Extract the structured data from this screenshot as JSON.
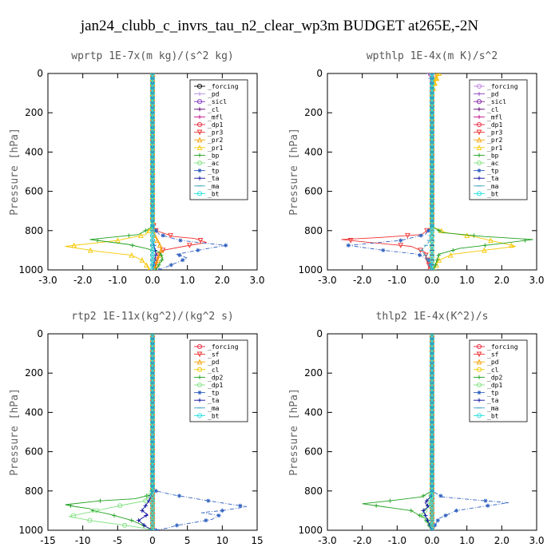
{
  "title": "jan24_clubb_c_invrs_tau_n2_clear_wp3m  BUDGET at265E,-2N",
  "chart_data": [
    {
      "type": "line",
      "title": "wprtp  1E-7x(m kg)/(s^2 kg)",
      "ylabel": "Pressure [hPa]",
      "xlim": [
        -3,
        3
      ],
      "ylim": [
        1000,
        0
      ],
      "xticks": [
        "-3.0",
        "-2.0",
        "-1.0",
        "0.0",
        "1.0",
        "2.0",
        "3.0"
      ],
      "yticks": [
        "0",
        "200",
        "400",
        "600",
        "800",
        "1000"
      ],
      "legend_position": "top-right",
      "series": [
        {
          "name": "_forcing",
          "color": "#000000",
          "marker": "o",
          "x": [
            0,
            0,
            0
          ],
          "y": [
            0,
            500,
            1000
          ]
        },
        {
          "name": "_pd",
          "color": "#b890e0",
          "marker": "+",
          "x": [
            0,
            0,
            0
          ],
          "y": [
            0,
            500,
            1000
          ]
        },
        {
          "name": "_sicl",
          "color": "#7a30c0",
          "marker": "o",
          "x": [
            0,
            0,
            0
          ],
          "y": [
            0,
            500,
            1000
          ]
        },
        {
          "name": "_cl",
          "color": "#5b0070",
          "marker": "+",
          "x": [
            0,
            0,
            0
          ],
          "y": [
            0,
            500,
            1000
          ]
        },
        {
          "name": "_mfl",
          "color": "#c0108a",
          "marker": "+",
          "x": [
            0,
            0,
            0
          ],
          "y": [
            0,
            500,
            1000
          ]
        },
        {
          "name": "_dp1",
          "color": "#e8213a",
          "marker": "o",
          "x": [
            0,
            0,
            0
          ],
          "y": [
            0,
            500,
            1000
          ]
        },
        {
          "name": "_pr3",
          "color": "#f03030",
          "marker": "v",
          "x": [
            0,
            0,
            0.1,
            0.6,
            1.2,
            1.55,
            0.9,
            0.3,
            0.15,
            0.1,
            0.05
          ],
          "y": [
            0,
            760,
            800,
            830,
            840,
            860,
            880,
            900,
            930,
            960,
            1000
          ]
        },
        {
          "name": "_pr2",
          "color": "#f5a000",
          "marker": "^",
          "x": [
            0,
            0,
            0,
            0.1,
            0.2,
            0.25,
            0.15,
            0.05
          ],
          "y": [
            0,
            760,
            800,
            840,
            870,
            900,
            950,
            1000
          ]
        },
        {
          "name": "_pr1",
          "color": "#f5c800",
          "marker": "^",
          "x": [
            0,
            0,
            -0.2,
            -1.0,
            -2.5,
            -1.6,
            -0.6,
            -0.3,
            -0.15,
            -0.1
          ],
          "y": [
            0,
            780,
            820,
            850,
            880,
            905,
            925,
            950,
            980,
            1000
          ]
        },
        {
          "name": "_bp",
          "color": "#20a020",
          "marker": "+",
          "x": [
            0,
            0,
            -0.4,
            -1.8,
            -0.7,
            -0.2,
            0.2,
            0.3,
            0.2,
            0.1
          ],
          "y": [
            0,
            780,
            820,
            845,
            870,
            890,
            910,
            940,
            970,
            1000
          ]
        },
        {
          "name": "_ac",
          "color": "#80e080",
          "marker": "o",
          "x": [
            0,
            0,
            0,
            0,
            0,
            0
          ],
          "y": [
            0,
            800,
            850,
            900,
            950,
            1000
          ]
        },
        {
          "name": "_tp",
          "color": "#3060c0",
          "marker": "*",
          "x": [
            0,
            0,
            0.2,
            0.8,
            2.1,
            1.3,
            0.7,
            1.0,
            0.6,
            0.2
          ],
          "y": [
            0,
            780,
            820,
            850,
            875,
            900,
            920,
            940,
            970,
            1000
          ]
        },
        {
          "name": "_ta",
          "color": "#1010a0",
          "marker": "+",
          "x": [
            0,
            0,
            0,
            0.05,
            0.1,
            0.05,
            0
          ],
          "y": [
            0,
            800,
            850,
            880,
            920,
            960,
            1000
          ]
        },
        {
          "name": "_ma",
          "color": "#40a0c0",
          "marker": "-",
          "x": [
            0,
            0,
            0
          ],
          "y": [
            0,
            500,
            1000
          ]
        },
        {
          "name": "_bt",
          "color": "#20e0e0",
          "marker": "o",
          "x": [
            0,
            0,
            0
          ],
          "y": [
            0,
            500,
            1000
          ]
        }
      ]
    },
    {
      "type": "line",
      "title": "wpthlp  1E-4x(m K)/s^2",
      "ylabel": "Pressure [hPa]",
      "xlim": [
        -3,
        3
      ],
      "ylim": [
        1000,
        0
      ],
      "xticks": [
        "-3.0",
        "-2.0",
        "-1.0",
        "0.0",
        "1.0",
        "2.0",
        "3.0"
      ],
      "yticks": [
        "0",
        "200",
        "400",
        "600",
        "800",
        "1000"
      ],
      "legend_position": "top-right",
      "series": [
        {
          "name": "_forcing",
          "color": "#c080e0",
          "marker": "o",
          "x": [
            0,
            0,
            0
          ],
          "y": [
            0,
            500,
            1000
          ]
        },
        {
          "name": "_pd",
          "color": "#9040c0",
          "marker": "+",
          "x": [
            -0.1,
            -0.05,
            0,
            0,
            0
          ],
          "y": [
            0,
            20,
            60,
            500,
            1000
          ]
        },
        {
          "name": "_sicl",
          "color": "#8020a0",
          "marker": "o",
          "x": [
            0,
            0,
            0
          ],
          "y": [
            0,
            500,
            1000
          ]
        },
        {
          "name": "_cl",
          "color": "#5b0070",
          "marker": "+",
          "x": [
            0,
            0,
            0
          ],
          "y": [
            0,
            500,
            1000
          ]
        },
        {
          "name": "_mfl",
          "color": "#c0108a",
          "marker": "+",
          "x": [
            0,
            0,
            0
          ],
          "y": [
            0,
            500,
            1000
          ]
        },
        {
          "name": "_dp1",
          "color": "#e8213a",
          "marker": "o",
          "x": [
            0,
            0,
            0
          ],
          "y": [
            0,
            500,
            1000
          ]
        },
        {
          "name": "_pr3",
          "color": "#f03030",
          "marker": "v",
          "x": [
            0,
            0,
            -0.3,
            -1.5,
            -2.6,
            -1.8,
            -0.6,
            -0.2,
            -0.05
          ],
          "y": [
            0,
            780,
            820,
            835,
            845,
            860,
            880,
            910,
            1000
          ]
        },
        {
          "name": "_pr2",
          "color": "#f5a000",
          "marker": "^",
          "x": [
            0.15,
            0.1,
            0,
            0,
            0
          ],
          "y": [
            0,
            30,
            80,
            500,
            1000
          ]
        },
        {
          "name": "_pr1",
          "color": "#f5c800",
          "marker": "^",
          "x": [
            0.2,
            0.1,
            0,
            0,
            0.4,
            1.2,
            2.4,
            1.5,
            0.6,
            0.2,
            0.05
          ],
          "y": [
            0,
            40,
            100,
            780,
            810,
            830,
            880,
            900,
            920,
            950,
            1000
          ]
        },
        {
          "name": "_bp",
          "color": "#20a020",
          "marker": "+",
          "x": [
            0,
            0,
            0.3,
            1.5,
            2.9,
            2.0,
            0.8,
            0.2,
            0.05
          ],
          "y": [
            0,
            780,
            810,
            830,
            845,
            865,
            890,
            920,
            1000
          ]
        },
        {
          "name": "_ac",
          "color": "#80e080",
          "marker": "o",
          "x": [
            0,
            0,
            0
          ],
          "y": [
            0,
            500,
            1000
          ]
        },
        {
          "name": "_tp",
          "color": "#3060c0",
          "marker": "*",
          "x": [
            0,
            0,
            -0.2,
            -0.9,
            -2.4,
            -1.4,
            -0.4,
            -0.1,
            0
          ],
          "y": [
            0,
            780,
            820,
            850,
            875,
            900,
            920,
            950,
            1000
          ]
        },
        {
          "name": "_ta",
          "color": "#1010a0",
          "marker": "+",
          "x": [
            0,
            0,
            0
          ],
          "y": [
            0,
            500,
            1000
          ]
        },
        {
          "name": "_ma",
          "color": "#40a0c0",
          "marker": "-",
          "x": [
            0,
            0,
            -0.1,
            -0.3,
            -0.1,
            0
          ],
          "y": [
            0,
            800,
            860,
            900,
            950,
            1000
          ]
        },
        {
          "name": "_bt",
          "color": "#20e0e0",
          "marker": "o",
          "x": [
            0,
            0,
            0
          ],
          "y": [
            0,
            500,
            1000
          ]
        }
      ]
    },
    {
      "type": "line",
      "title": "rtp2  1E-11x(kg^2)/(kg^2 s)",
      "ylabel": "Pressure [hPa]",
      "xlim": [
        -15,
        15
      ],
      "ylim": [
        1000,
        0
      ],
      "xticks": [
        "-15",
        "-10",
        "-5",
        "0",
        "5",
        "10",
        "15"
      ],
      "yticks": [
        "0",
        "200",
        "400",
        "600",
        "800",
        "1000"
      ],
      "legend_position": "top-right",
      "series": [
        {
          "name": "_forcing",
          "color": "#e8213a",
          "marker": "o",
          "x": [
            0,
            0,
            0
          ],
          "y": [
            0,
            500,
            1000
          ]
        },
        {
          "name": "_sf",
          "color": "#f03030",
          "marker": "v",
          "x": [
            0,
            0,
            0
          ],
          "y": [
            0,
            500,
            1000
          ]
        },
        {
          "name": "_pd",
          "color": "#f5a000",
          "marker": "^",
          "x": [
            0,
            0,
            0
          ],
          "y": [
            0,
            500,
            1000
          ]
        },
        {
          "name": "_cl",
          "color": "#f5c800",
          "marker": "o",
          "x": [
            0,
            0,
            0
          ],
          "y": [
            0,
            500,
            1000
          ]
        },
        {
          "name": "_dp2",
          "color": "#20a020",
          "marker": "+",
          "x": [
            0,
            0,
            -0.3,
            -2.5,
            -7.5,
            -12.5,
            -11.0,
            -9.0,
            -8.5,
            -6.0,
            -3.0,
            -1.0,
            0
          ],
          "y": [
            0,
            780,
            820,
            840,
            850,
            870,
            880,
            890,
            900,
            920,
            950,
            980,
            1000
          ]
        },
        {
          "name": "_dp1",
          "color": "#80e080",
          "marker": "o",
          "x": [
            0,
            0,
            -1.0,
            -4.0,
            -8.0,
            -12.0,
            -9.0,
            -5.0,
            -2.0,
            -0.5,
            0
          ],
          "y": [
            0,
            800,
            850,
            870,
            900,
            930,
            950,
            970,
            985,
            995,
            1000
          ]
        },
        {
          "name": "_tp",
          "color": "#3060c0",
          "marker": "*",
          "x": [
            0,
            0,
            0.5,
            3.0,
            8.0,
            13.5,
            10.0,
            7.0,
            9.5,
            8.5,
            6.0,
            3.5,
            2.0,
            0.5
          ],
          "y": [
            0,
            780,
            800,
            820,
            850,
            880,
            900,
            910,
            925,
            945,
            960,
            975,
            990,
            1000
          ]
        },
        {
          "name": "_ta",
          "color": "#1010a0",
          "marker": "+",
          "x": [
            0,
            0,
            -0.5,
            -1.5,
            -0.7,
            -2.0,
            -1.0,
            0
          ],
          "y": [
            0,
            800,
            850,
            900,
            920,
            950,
            980,
            1000
          ]
        },
        {
          "name": "_ma",
          "color": "#40a0c0",
          "marker": "-",
          "x": [
            0,
            0,
            0
          ],
          "y": [
            0,
            500,
            1000
          ]
        },
        {
          "name": "_bt",
          "color": "#20e0e0",
          "marker": "o",
          "x": [
            0,
            0,
            0
          ],
          "y": [
            0,
            500,
            1000
          ]
        }
      ]
    },
    {
      "type": "line",
      "title": "thlp2  1E-4x(K^2)/s",
      "ylabel": "Pressure [hPa]",
      "xlim": [
        -3,
        3
      ],
      "ylim": [
        1000,
        0
      ],
      "xticks": [
        "-3.0",
        "-2.0",
        "-1.0",
        "0.0",
        "1.0",
        "2.0",
        "3.0"
      ],
      "yticks": [
        "0",
        "200",
        "400",
        "600",
        "800",
        "1000"
      ],
      "legend_position": "top-right",
      "series": [
        {
          "name": "_forcing",
          "color": "#e8213a",
          "marker": "o",
          "x": [
            0,
            0,
            0
          ],
          "y": [
            0,
            500,
            1000
          ]
        },
        {
          "name": "_sf",
          "color": "#f03030",
          "marker": "v",
          "x": [
            0,
            0,
            0
          ],
          "y": [
            0,
            500,
            1000
          ]
        },
        {
          "name": "_pd",
          "color": "#f5a000",
          "marker": "^",
          "x": [
            0,
            0,
            0
          ],
          "y": [
            0,
            500,
            1000
          ]
        },
        {
          "name": "_cl",
          "color": "#f5c800",
          "marker": "o",
          "x": [
            0,
            0,
            0
          ],
          "y": [
            0,
            500,
            1000
          ]
        },
        {
          "name": "_dp2",
          "color": "#20a020",
          "marker": "+",
          "x": [
            0,
            0,
            -0.3,
            -1.2,
            -2.0,
            -1.4,
            -0.6,
            -0.2,
            0
          ],
          "y": [
            0,
            800,
            830,
            850,
            865,
            880,
            900,
            940,
            1000
          ]
        },
        {
          "name": "_dp1",
          "color": "#80e080",
          "marker": "o",
          "x": [
            0,
            0,
            -0.1,
            -0.3,
            -0.1,
            0
          ],
          "y": [
            0,
            800,
            880,
            920,
            960,
            1000
          ]
        },
        {
          "name": "_tp",
          "color": "#3060c0",
          "marker": "*",
          "x": [
            0,
            0,
            0.3,
            1.2,
            2.2,
            1.6,
            0.7,
            0.2,
            0
          ],
          "y": [
            0,
            800,
            830,
            845,
            860,
            875,
            900,
            940,
            1000
          ]
        },
        {
          "name": "_ta",
          "color": "#1010a0",
          "marker": "+",
          "x": [
            0,
            0,
            -0.2,
            -0.1,
            -0.25,
            0
          ],
          "y": [
            0,
            820,
            860,
            880,
            900,
            1000
          ]
        },
        {
          "name": "_ma",
          "color": "#40a0c0",
          "marker": "-",
          "x": [
            0,
            0,
            0
          ],
          "y": [
            0,
            500,
            1000
          ]
        },
        {
          "name": "_bt",
          "color": "#20e0e0",
          "marker": "o",
          "x": [
            0,
            0,
            0
          ],
          "y": [
            0,
            500,
            1000
          ]
        }
      ]
    }
  ]
}
